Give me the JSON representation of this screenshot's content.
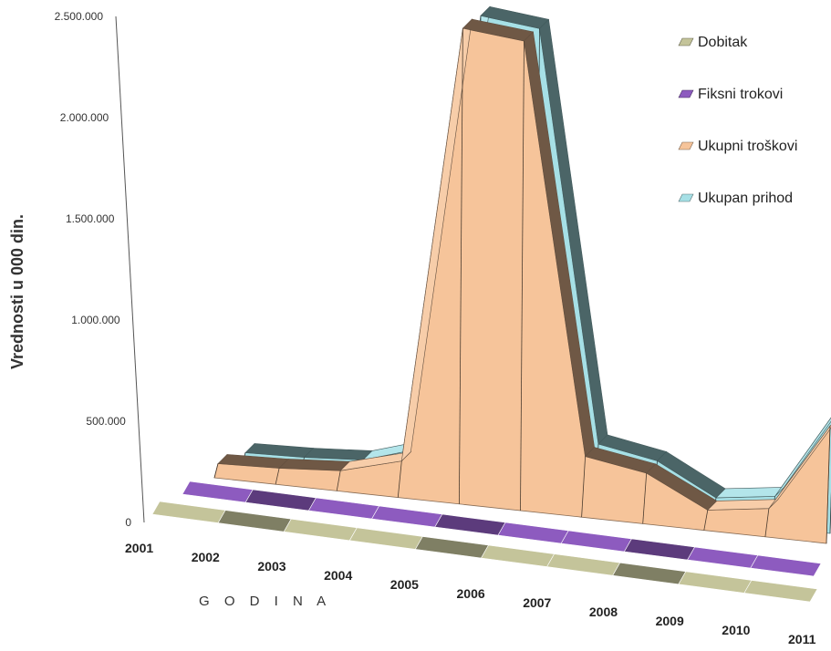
{
  "chart_data": {
    "type": "area",
    "categories": [
      "2001",
      "2002",
      "2003",
      "2004",
      "2005",
      "2006",
      "2007",
      "2008",
      "2009",
      "2010",
      "2011"
    ],
    "series": [
      {
        "name": "Dobitak",
        "values": [
          0,
          0,
          0,
          0,
          0,
          0,
          0,
          0,
          0,
          0,
          0
        ],
        "color": "#c4c49a"
      },
      {
        "name": "Fiksni trokovi",
        "values": [
          0,
          0,
          0,
          0,
          0,
          0,
          0,
          0,
          0,
          0,
          0
        ],
        "color": "#8d5bbf"
      },
      {
        "name": "Ukupni troškovi",
        "values": [
          70000,
          80000,
          100000,
          180000,
          2350000,
          2320000,
          300000,
          250000,
          100000,
          140000,
          580000
        ],
        "color": "#f6c49a"
      },
      {
        "name": "Ukupan prihod",
        "values": [
          70000,
          80000,
          100000,
          190000,
          2360000,
          2330000,
          310000,
          260000,
          110000,
          150000,
          590000
        ],
        "color": "#a6e0e6"
      }
    ],
    "yticks": [
      "0",
      "500.000",
      "1.000.000",
      "1.500.000",
      "2.000.000",
      "2.500.000"
    ],
    "ylim": [
      0,
      2500000
    ],
    "ylabel": "Vrednosti u 000 din.",
    "xlabel": "G O D I N A",
    "legend_position": "right"
  }
}
